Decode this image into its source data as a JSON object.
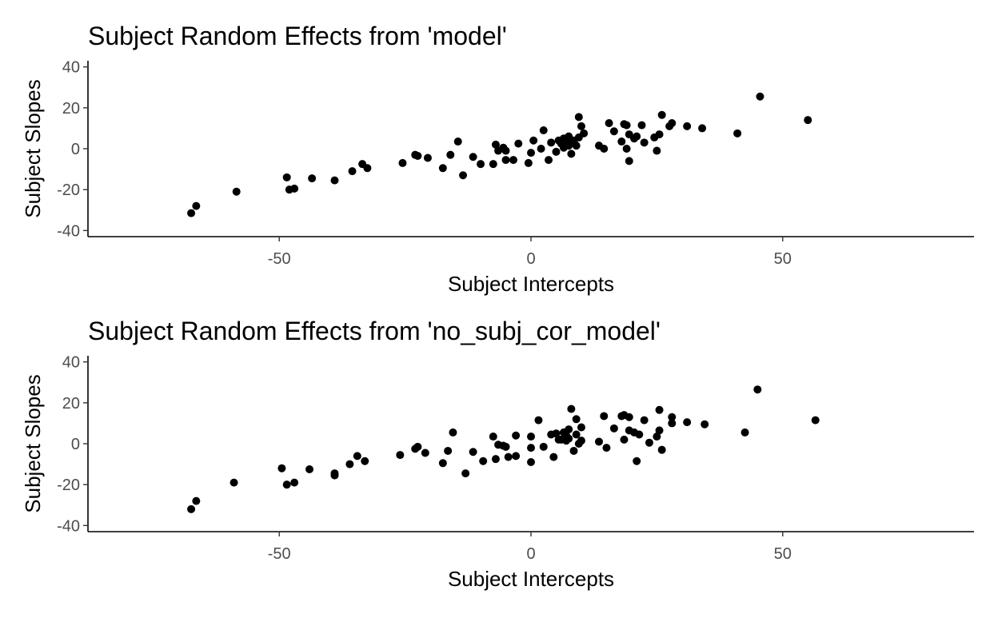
{
  "chart_data": [
    {
      "type": "scatter",
      "title": "Subject Random Effects from 'model'",
      "xlabel": "Subject Intercepts",
      "ylabel": "Subject Slopes",
      "xlim": [
        -88,
        88
      ],
      "ylim": [
        -43,
        43
      ],
      "xticks": [
        -50,
        0,
        50
      ],
      "xtick_labels": [
        "-50",
        "0",
        "50"
      ],
      "yticks": [
        -40,
        -20,
        0,
        20,
        40
      ],
      "ytick_labels": [
        "-40",
        "-20",
        "0",
        "20",
        "40"
      ],
      "grid": false,
      "point_color": "#000000",
      "points": [
        [
          -67.5,
          -31.5
        ],
        [
          -66.5,
          -28
        ],
        [
          -58.5,
          -21
        ],
        [
          -48.5,
          -14
        ],
        [
          -48,
          -20
        ],
        [
          -47,
          -19.5
        ],
        [
          -43.5,
          -14.5
        ],
        [
          -39,
          -15.5
        ],
        [
          -35.5,
          -11
        ],
        [
          -33.5,
          -7.5
        ],
        [
          -32.5,
          -9.5
        ],
        [
          -25.5,
          -7
        ],
        [
          -23,
          -3
        ],
        [
          -22.5,
          -3.5
        ],
        [
          -20.5,
          -4.5
        ],
        [
          -17.5,
          -9.5
        ],
        [
          -16,
          -3
        ],
        [
          -14.5,
          3.5
        ],
        [
          -13.5,
          -13
        ],
        [
          -11.5,
          -4
        ],
        [
          -10,
          -7.5
        ],
        [
          -7.5,
          -7.5
        ],
        [
          -7,
          2
        ],
        [
          -6.5,
          -1
        ],
        [
          -5.5,
          0.5
        ],
        [
          -5,
          -1
        ],
        [
          -5,
          -5.5
        ],
        [
          -3.5,
          -5.5
        ],
        [
          -2.5,
          2.5
        ],
        [
          -0.5,
          -7
        ],
        [
          0,
          -2
        ],
        [
          0.5,
          4
        ],
        [
          2,
          0
        ],
        [
          2.5,
          9
        ],
        [
          3.5,
          -5.5
        ],
        [
          4,
          3
        ],
        [
          5,
          -1.5
        ],
        [
          5.5,
          4
        ],
        [
          6,
          2.5
        ],
        [
          6.5,
          0.5
        ],
        [
          6.5,
          5
        ],
        [
          7,
          3.5
        ],
        [
          7.5,
          6
        ],
        [
          7.5,
          1.5
        ],
        [
          8,
          -2.5
        ],
        [
          8.5,
          4
        ],
        [
          9,
          1.5
        ],
        [
          9.5,
          15.5
        ],
        [
          9.5,
          5.5
        ],
        [
          10,
          11
        ],
        [
          10.5,
          7.5
        ],
        [
          13.5,
          1.5
        ],
        [
          14.5,
          0
        ],
        [
          15.5,
          12.5
        ],
        [
          16.5,
          8.5
        ],
        [
          18,
          3.5
        ],
        [
          18.5,
          12
        ],
        [
          19,
          0
        ],
        [
          19,
          11.5
        ],
        [
          19.5,
          -6
        ],
        [
          19.5,
          7
        ],
        [
          20.5,
          5
        ],
        [
          21,
          6
        ],
        [
          22,
          11.5
        ],
        [
          22.5,
          3
        ],
        [
          24.5,
          5.5
        ],
        [
          25,
          -1
        ],
        [
          25.5,
          7
        ],
        [
          26,
          16.5
        ],
        [
          27.5,
          11
        ],
        [
          28,
          12.5
        ],
        [
          31,
          11
        ],
        [
          34,
          10
        ],
        [
          41,
          7.5
        ],
        [
          45.5,
          25.5
        ],
        [
          55,
          14
        ]
      ]
    },
    {
      "type": "scatter",
      "title": "Subject Random Effects from 'no_subj_cor_model'",
      "xlabel": "Subject Intercepts",
      "ylabel": "Subject Slopes",
      "xlim": [
        -88,
        88
      ],
      "ylim": [
        -43,
        43
      ],
      "xticks": [
        -50,
        0,
        50
      ],
      "xtick_labels": [
        "-50",
        "0",
        "50"
      ],
      "yticks": [
        -40,
        -20,
        0,
        20,
        40
      ],
      "ytick_labels": [
        "-40",
        "-20",
        "0",
        "20",
        "40"
      ],
      "grid": false,
      "point_color": "#000000",
      "points": [
        [
          -67.5,
          -32
        ],
        [
          -66.5,
          -28
        ],
        [
          -59,
          -19
        ],
        [
          -49.5,
          -12
        ],
        [
          -48.5,
          -20
        ],
        [
          -47,
          -19
        ],
        [
          -44,
          -12.5
        ],
        [
          -39,
          -14.5
        ],
        [
          -39,
          -15.5
        ],
        [
          -36,
          -10
        ],
        [
          -34.5,
          -6
        ],
        [
          -33,
          -8.5
        ],
        [
          -26,
          -5.5
        ],
        [
          -23,
          -2.5
        ],
        [
          -22.5,
          -1.5
        ],
        [
          -21,
          -4.5
        ],
        [
          -17.5,
          -9.5
        ],
        [
          -16.5,
          -3.5
        ],
        [
          -15.5,
          5.5
        ],
        [
          -13,
          -14.5
        ],
        [
          -11.5,
          -4
        ],
        [
          -9.5,
          -8.5
        ],
        [
          -7.5,
          3.5
        ],
        [
          -7,
          -7.5
        ],
        [
          -6.5,
          -0.5
        ],
        [
          -5.5,
          -1
        ],
        [
          -5,
          -1.5
        ],
        [
          -4.5,
          -6.5
        ],
        [
          -3,
          4
        ],
        [
          -3,
          -6
        ],
        [
          0,
          -9
        ],
        [
          0,
          3.5
        ],
        [
          0,
          -2
        ],
        [
          1.5,
          11.5
        ],
        [
          2.5,
          -1.5
        ],
        [
          4,
          4.5
        ],
        [
          4.5,
          -6.5
        ],
        [
          5,
          5
        ],
        [
          5.5,
          2
        ],
        [
          6,
          2
        ],
        [
          6.5,
          5.5
        ],
        [
          7,
          4
        ],
        [
          7,
          1.5
        ],
        [
          7.5,
          7
        ],
        [
          7.5,
          2.5
        ],
        [
          8,
          17
        ],
        [
          8.5,
          -3.5
        ],
        [
          9,
          12
        ],
        [
          9,
          4.5
        ],
        [
          9.5,
          0
        ],
        [
          10,
          1.5
        ],
        [
          10,
          8
        ],
        [
          13.5,
          1
        ],
        [
          14.5,
          13.5
        ],
        [
          15,
          -2
        ],
        [
          16.5,
          7.5
        ],
        [
          18,
          13.5
        ],
        [
          18.5,
          2
        ],
        [
          18.5,
          14
        ],
        [
          19.5,
          13
        ],
        [
          19.5,
          6.5
        ],
        [
          20.5,
          5.5
        ],
        [
          21,
          -8.5
        ],
        [
          21.5,
          4.5
        ],
        [
          22.5,
          11.5
        ],
        [
          23.5,
          0.5
        ],
        [
          25,
          3.5
        ],
        [
          25.5,
          16.5
        ],
        [
          25.5,
          6.5
        ],
        [
          26,
          -3
        ],
        [
          28,
          13
        ],
        [
          28,
          10
        ],
        [
          31,
          10.5
        ],
        [
          34.5,
          9.5
        ],
        [
          42.5,
          5.5
        ],
        [
          45,
          26.5
        ],
        [
          56.5,
          11.5
        ]
      ]
    }
  ]
}
